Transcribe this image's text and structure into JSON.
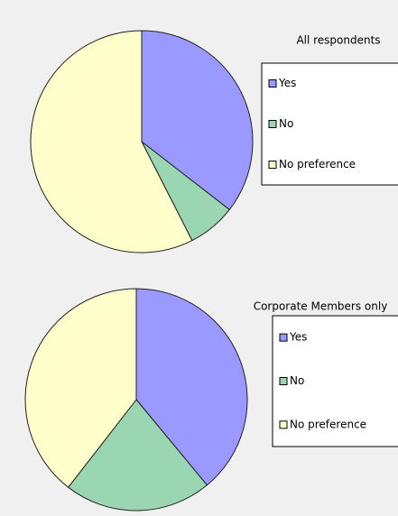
{
  "chart_data": [
    {
      "type": "pie",
      "title": "All respondents",
      "categories": [
        "Yes",
        "No",
        "No preference"
      ],
      "values": [
        35.5,
        7,
        57.5
      ],
      "colors": [
        "#9999ff",
        "#99d6b1",
        "#ffffcc"
      ]
    },
    {
      "type": "pie",
      "title": "Corporate Members only",
      "categories": [
        "Yes",
        "No",
        "No preference"
      ],
      "values": [
        39,
        21.5,
        39.5
      ],
      "colors": [
        "#9999ff",
        "#99d6b1",
        "#ffffcc"
      ]
    }
  ]
}
